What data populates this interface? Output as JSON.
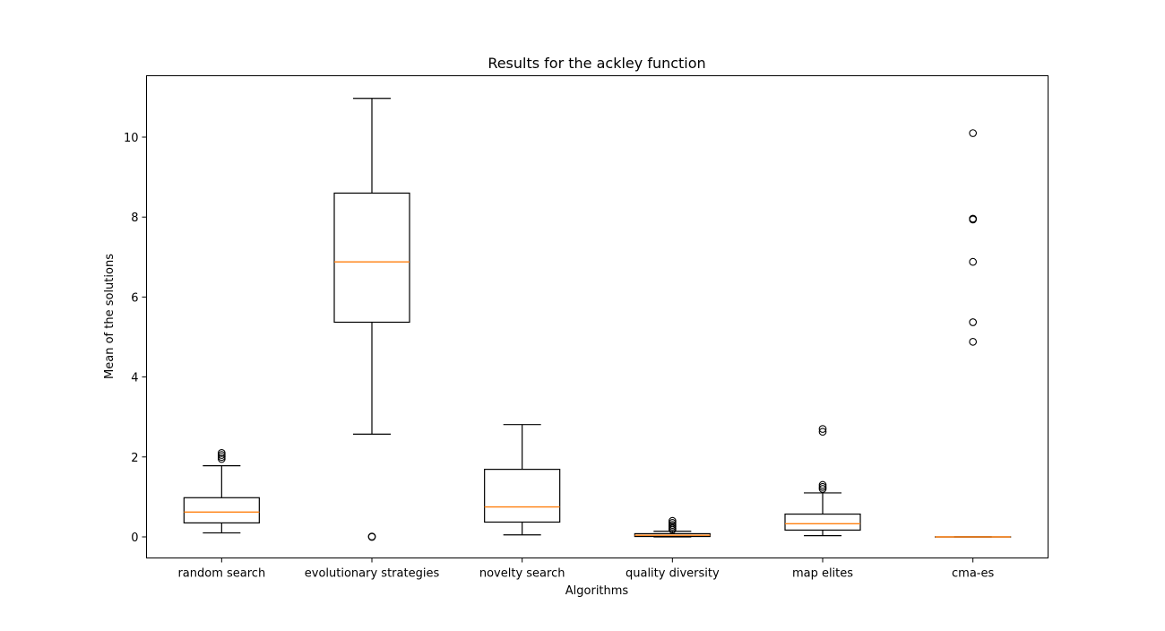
{
  "chart_data": {
    "type": "box",
    "title": "Results for the ackley function",
    "xlabel": "Algorithms",
    "ylabel": "Mean of the solutions",
    "ylim": [
      -0.55,
      11.5
    ],
    "yticks": [
      0,
      2,
      4,
      6,
      8,
      10
    ],
    "yticklabels": [
      "0",
      "2",
      "4",
      "6",
      "8",
      "10"
    ],
    "grid": false,
    "colors": {
      "box": "#000000",
      "median": "#ff7f0e",
      "background": "#ffffff"
    },
    "categories": [
      "random search",
      "evolutionary strategies",
      "novelty search",
      "quality diversity",
      "map elites",
      "cma-es"
    ],
    "boxes": [
      {
        "name": "random search",
        "whisker_low": 0.1,
        "q1": 0.35,
        "median": 0.62,
        "q3": 0.98,
        "whisker_high": 1.78,
        "outliers": [
          1.95,
          2.0,
          2.05,
          2.1
        ]
      },
      {
        "name": "evolutionary strategies",
        "whisker_low": 2.57,
        "q1": 5.37,
        "median": 6.88,
        "q3": 8.6,
        "whisker_high": 10.97,
        "outliers": [
          0.0,
          0.01
        ]
      },
      {
        "name": "novelty search",
        "whisker_low": 0.05,
        "q1": 0.37,
        "median": 0.75,
        "q3": 1.69,
        "whisker_high": 2.81,
        "outliers": []
      },
      {
        "name": "quality diversity",
        "whisker_low": 0.0,
        "q1": 0.01,
        "median": 0.04,
        "q3": 0.08,
        "whisker_high": 0.14,
        "outliers": [
          0.18,
          0.22,
          0.26,
          0.3,
          0.35,
          0.4
        ]
      },
      {
        "name": "map elites",
        "whisker_low": 0.03,
        "q1": 0.17,
        "median": 0.33,
        "q3": 0.57,
        "whisker_high": 1.1,
        "outliers": [
          1.2,
          1.25,
          1.3,
          2.63,
          2.7
        ]
      },
      {
        "name": "cma-es",
        "whisker_low": 0.0,
        "q1": 0.0,
        "median": 0.0,
        "q3": 0.0,
        "whisker_high": 0.0,
        "outliers": [
          4.88,
          5.37,
          6.88,
          7.94,
          7.96,
          10.1
        ]
      }
    ]
  }
}
